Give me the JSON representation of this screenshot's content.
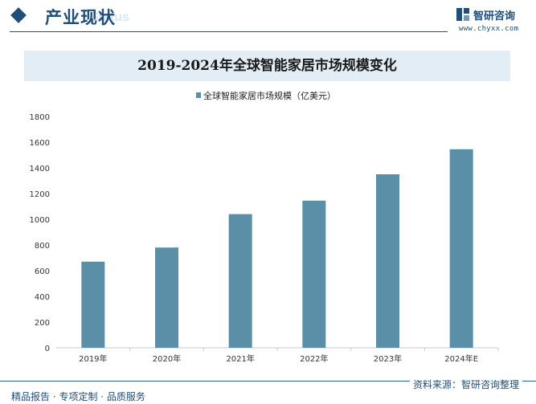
{
  "header": {
    "title": "产业现状",
    "title_en": "Status"
  },
  "brand": {
    "name": "智研咨询",
    "url": "www.chyxx.com",
    "logo_icon": "zhiyan-logo-icon"
  },
  "footer": {
    "left": "精品报告 · 专项定制 · 品质服务",
    "source": "资料来源：智研咨询整理"
  },
  "colors": {
    "primary": "#1f4e79",
    "bar": "#5b8fa8",
    "title_band": "#e2edf5"
  },
  "chart_data": {
    "type": "bar",
    "title": "2019-2024年全球智能家居市场规模变化",
    "categories": [
      "2019年",
      "2020年",
      "2021年",
      "2022年",
      "2023年",
      "2024年E"
    ],
    "series": [
      {
        "name": "全球智能家居市场规模（亿美元）",
        "values": [
          670,
          780,
          1040,
          1145,
          1350,
          1545
        ]
      }
    ],
    "ylim": [
      0,
      1800
    ],
    "yticks": [
      0,
      200,
      400,
      600,
      800,
      1000,
      1200,
      1400,
      1600,
      1800
    ],
    "grid": false,
    "legend": "top-center"
  }
}
